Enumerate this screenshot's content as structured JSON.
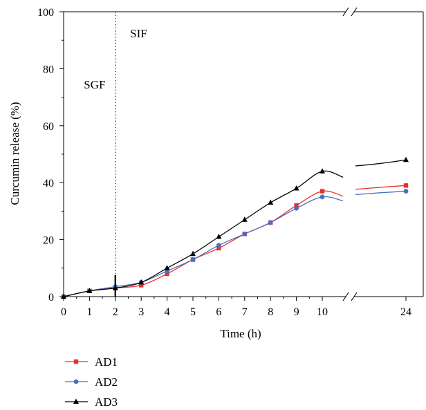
{
  "chart_data": {
    "type": "line",
    "xlabel": "Time (h)",
    "ylabel": "Curcumin release (%)",
    "x_ticks": [
      0,
      1,
      2,
      3,
      4,
      5,
      6,
      7,
      8,
      9,
      10,
      24
    ],
    "x_tick_labels": [
      "0",
      "1",
      "2",
      "3",
      "4",
      "5",
      "6",
      "7",
      "8",
      "9",
      "10",
      "24"
    ],
    "y_ticks": [
      0,
      20,
      40,
      60,
      80,
      100
    ],
    "y_tick_labels": [
      "0",
      "20",
      "40",
      "60",
      "80",
      "100"
    ],
    "ylim": [
      0,
      100
    ],
    "axis_break": "between 10 and 24 h",
    "phase_divider_x": 2,
    "annotations": [
      {
        "text": "SGF",
        "x": 1.2,
        "y": 73
      },
      {
        "text": "SIF",
        "x": 2.9,
        "y": 91
      }
    ],
    "legend_position": "bottom-left",
    "series": [
      {
        "name": "AD1",
        "color": "#e8312e",
        "marker": "square",
        "x": [
          0,
          1,
          2,
          3,
          4,
          5,
          6,
          7,
          8,
          9,
          10,
          24
        ],
        "y": [
          0,
          2,
          3,
          4,
          8,
          13,
          17,
          22,
          26,
          32,
          37,
          39
        ]
      },
      {
        "name": "AD2",
        "color": "#4a6fbf",
        "marker": "circle",
        "x": [
          0,
          1,
          2,
          3,
          4,
          5,
          6,
          7,
          8,
          9,
          10,
          24
        ],
        "y": [
          0,
          2,
          3.5,
          5,
          9,
          13,
          18,
          22,
          26,
          31,
          35,
          37
        ]
      },
      {
        "name": "AD3",
        "color": "#000000",
        "marker": "triangle",
        "x": [
          0,
          1,
          2,
          3,
          4,
          5,
          6,
          7,
          8,
          9,
          10,
          24
        ],
        "y": [
          0,
          2,
          3,
          5,
          10,
          15,
          21,
          27,
          33,
          38,
          44,
          48
        ]
      }
    ]
  }
}
